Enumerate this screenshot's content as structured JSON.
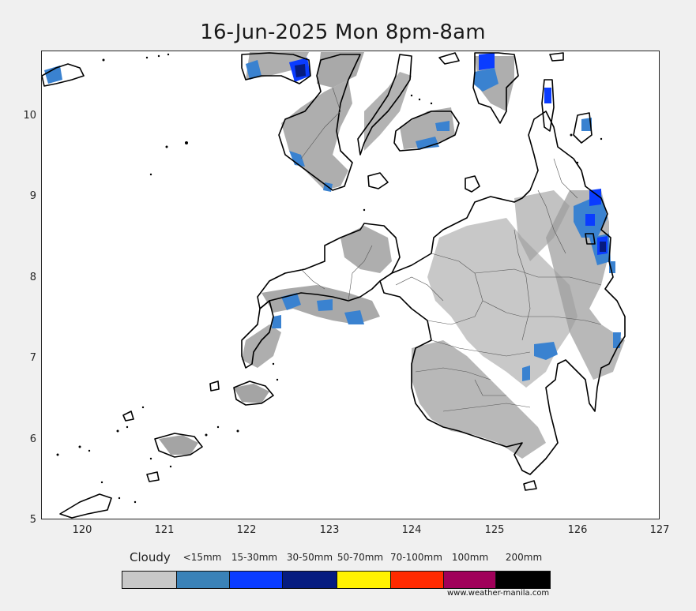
{
  "title": "16-Jun-2025 Mon 8pm-8am",
  "axes": {
    "x_ticks": [
      "120",
      "121",
      "122",
      "123",
      "124",
      "125",
      "126",
      "127"
    ],
    "y_ticks": [
      "10",
      "9",
      "8",
      "7",
      "6",
      "5"
    ],
    "x_range": [
      119.5,
      127
    ],
    "y_range": [
      5,
      10.8
    ]
  },
  "legend": {
    "title": "Cloudy",
    "items": [
      {
        "label": "<15mm",
        "color": "#3a82b8"
      },
      {
        "label": "15-30mm",
        "color": "#0a3cff"
      },
      {
        "label": "30-50mm",
        "color": "#061c80"
      },
      {
        "label": "50-70mm",
        "color": "#fff200"
      },
      {
        "label": "70-100mm",
        "color": "#ff2a00"
      },
      {
        "label": "100mm",
        "color": "#a0005a"
      },
      {
        "label": "200mm",
        "color": "#000000"
      }
    ],
    "cloudy_color": "#c8c8c8"
  },
  "credit": "www.weather-manila.com",
  "map_colors": {
    "cloud": "#9a9a9a",
    "rain_light": "#3a82d0",
    "rain_moderate": "#0a3cff",
    "rain_heavy": "#061c80",
    "coast": "#000000",
    "province": "#555555"
  }
}
